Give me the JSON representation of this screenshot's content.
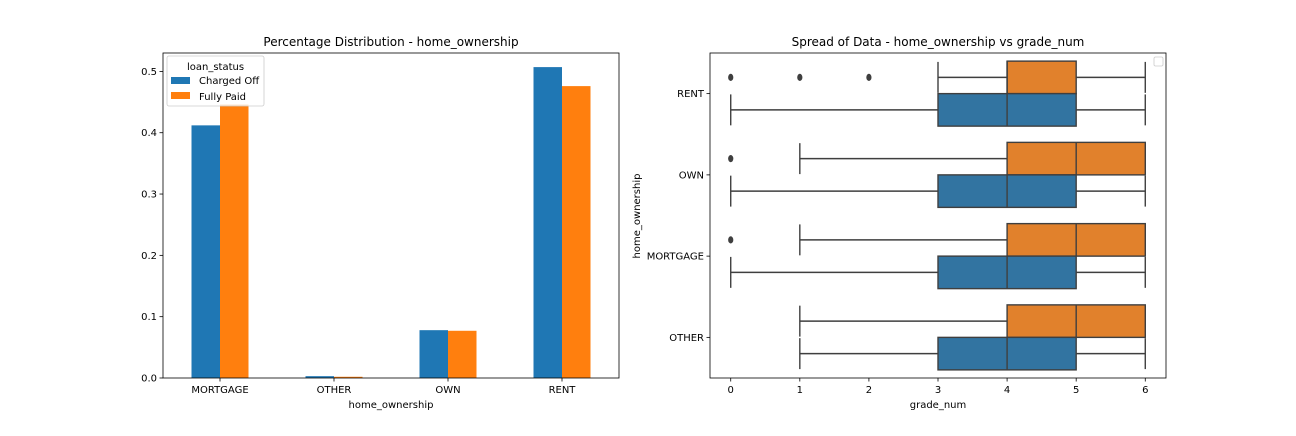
{
  "chart_data": [
    {
      "type": "bar",
      "title": "Percentage Distribution - home_ownership",
      "xlabel": "home_ownership",
      "ylabel": "",
      "categories": [
        "MORTGAGE",
        "OTHER",
        "OWN",
        "RENT"
      ],
      "ylim": [
        0,
        0.53
      ],
      "yticks": [
        0.0,
        0.1,
        0.2,
        0.3,
        0.4,
        0.5
      ],
      "ytick_labels": [
        "0.0",
        "0.1",
        "0.2",
        "0.3",
        "0.4",
        "0.5"
      ],
      "legend": {
        "title": "loan_status",
        "position": "top-left"
      },
      "series": [
        {
          "name": "Charged Off",
          "color": "#1f77b4",
          "values": [
            0.412,
            0.003,
            0.078,
            0.507
          ]
        },
        {
          "name": "Fully Paid",
          "color": "#ff7f0e",
          "values": [
            0.446,
            0.002,
            0.077,
            0.476
          ]
        }
      ]
    },
    {
      "type": "boxplot",
      "orientation": "horizontal",
      "title": "Spread of Data - home_ownership vs grade_num",
      "xlabel": "grade_num",
      "ylabel": "home_ownership",
      "categories": [
        "RENT",
        "OWN",
        "MORTGAGE",
        "OTHER"
      ],
      "xlim": [
        -0.3,
        6.3
      ],
      "xticks": [
        0,
        1,
        2,
        3,
        4,
        5,
        6
      ],
      "xtick_labels": [
        "0",
        "1",
        "2",
        "3",
        "4",
        "5",
        "6"
      ],
      "legend": {
        "position": "top-right",
        "entries": []
      },
      "series": [
        {
          "color": "#e1812c",
          "boxes": [
            {
              "whislo": 3,
              "q1": 4,
              "med": 4,
              "q3": 5,
              "whishi": 6,
              "fliers": [
                0,
                1,
                2
              ]
            },
            {
              "whislo": 1,
              "q1": 4,
              "med": 5,
              "q3": 6,
              "whishi": 6,
              "fliers": [
                0
              ]
            },
            {
              "whislo": 1,
              "q1": 4,
              "med": 5,
              "q3": 6,
              "whishi": 6,
              "fliers": [
                0
              ]
            },
            {
              "whislo": 1,
              "q1": 4,
              "med": 5,
              "q3": 6,
              "whishi": 6,
              "fliers": []
            }
          ]
        },
        {
          "color": "#3274a1",
          "boxes": [
            {
              "whislo": 0,
              "q1": 3,
              "med": 4,
              "q3": 5,
              "whishi": 6,
              "fliers": []
            },
            {
              "whislo": 0,
              "q1": 3,
              "med": 4,
              "q3": 5,
              "whishi": 6,
              "fliers": []
            },
            {
              "whislo": 0,
              "q1": 3,
              "med": 4,
              "q3": 5,
              "whishi": 6,
              "fliers": []
            },
            {
              "whislo": 1,
              "q1": 3,
              "med": 4,
              "q3": 5,
              "whishi": 6,
              "fliers": []
            }
          ]
        }
      ]
    }
  ]
}
